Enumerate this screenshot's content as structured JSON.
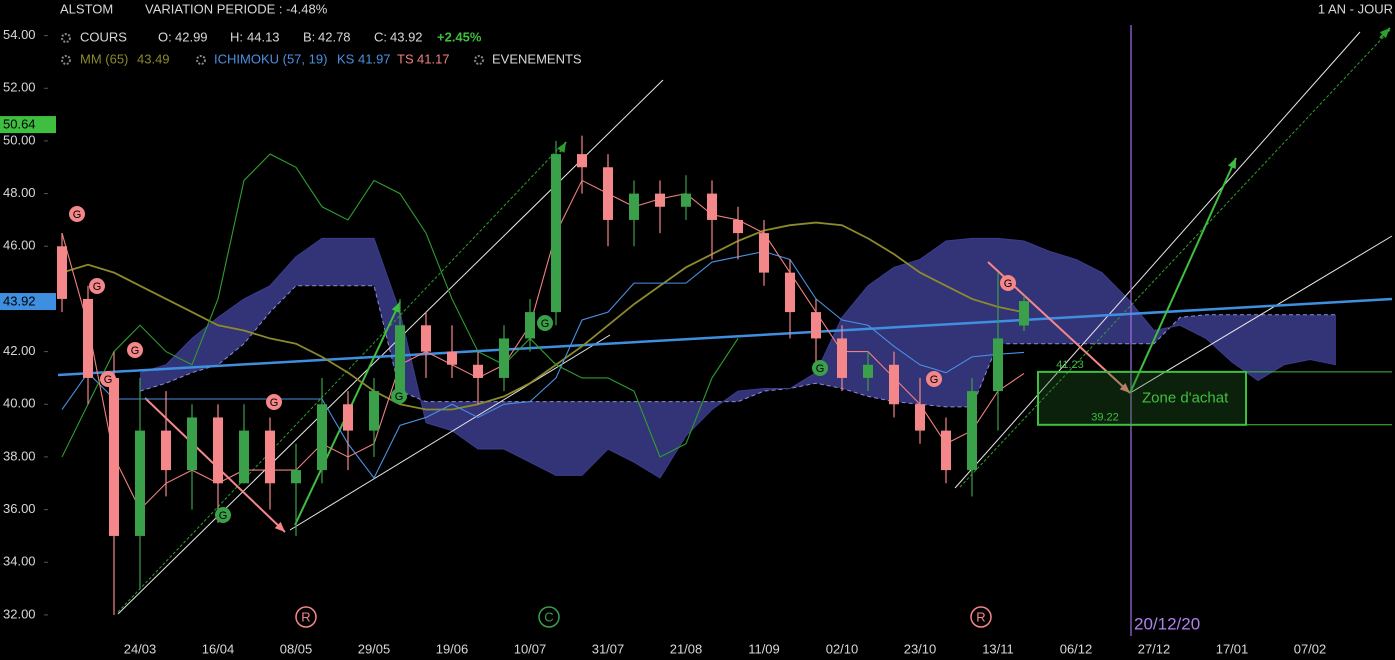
{
  "header": {
    "symbol": "ALSTOM",
    "variation": "VARIATION PERIODE : -4.48%",
    "period": "1 AN - JOUR"
  },
  "chart_data": {
    "type": "candlestick",
    "categories": [
      null,
      null,
      null,
      "24/03",
      null,
      null,
      "16/04",
      null,
      null,
      "08/05",
      null,
      null,
      "29/05",
      null,
      null,
      "19/06",
      null,
      null,
      "10/07",
      null,
      null,
      "31/07",
      null,
      null,
      "21/08",
      null,
      null,
      "11/09",
      null,
      null,
      "02/10",
      null,
      null,
      "23/10",
      null,
      null,
      "13/11",
      null,
      null,
      "06/12",
      null,
      null,
      "27/12",
      null,
      null,
      "17/01",
      null,
      null,
      "07/02",
      null,
      null
    ],
    "open": [
      46.0,
      44.0,
      41.0,
      35.0,
      39.0,
      37.5,
      39.5,
      37.0,
      39.0,
      37.0,
      37.5,
      40.0,
      39.0,
      40.5,
      43.0,
      42.0,
      41.5,
      41.0,
      42.5,
      43.5,
      49.5,
      49.0,
      47.0,
      48.0,
      47.5,
      48.0,
      47.0,
      46.5,
      45.0,
      43.5,
      42.5,
      41.0,
      41.5,
      40.0,
      39.0,
      37.5,
      40.5,
      42.99,
      null,
      null,
      null,
      null,
      null,
      null,
      null,
      null,
      null,
      null,
      null,
      null,
      null
    ],
    "high": [
      46.5,
      44.5,
      42.0,
      41.0,
      40.5,
      40.0,
      40.0,
      40.0,
      39.5,
      38.5,
      41.0,
      40.5,
      41.0,
      44.0,
      43.5,
      43.0,
      42.0,
      43.0,
      44.0,
      50.0,
      50.2,
      49.5,
      48.5,
      48.5,
      48.7,
      48.5,
      47.5,
      47.0,
      45.5,
      44.0,
      43.0,
      42.0,
      42.0,
      41.0,
      39.5,
      41.0,
      45.0,
      44.13,
      null,
      null,
      null,
      null,
      null,
      null,
      null,
      null,
      null,
      null,
      null,
      null,
      null
    ],
    "low": [
      43.5,
      40.0,
      32.0,
      33.0,
      36.5,
      36.0,
      35.5,
      37.0,
      36.0,
      35.0,
      37.0,
      37.5,
      38.0,
      40.0,
      41.0,
      41.0,
      40.0,
      40.5,
      42.0,
      43.0,
      48.0,
      46.0,
      46.0,
      46.5,
      47.0,
      45.5,
      45.5,
      44.5,
      42.5,
      41.5,
      40.5,
      40.5,
      39.5,
      38.5,
      37.0,
      36.5,
      39.0,
      42.78,
      null,
      null,
      null,
      null,
      null,
      null,
      null,
      null,
      null,
      null,
      null,
      null,
      null
    ],
    "close": [
      44.0,
      41.0,
      35.0,
      39.0,
      37.5,
      39.5,
      37.0,
      39.0,
      37.0,
      37.5,
      40.0,
      39.0,
      40.5,
      43.0,
      42.0,
      41.5,
      41.0,
      42.5,
      43.5,
      49.5,
      49.0,
      47.0,
      48.0,
      47.5,
      48.0,
      47.0,
      46.5,
      45.0,
      43.5,
      42.5,
      41.0,
      41.5,
      40.0,
      39.0,
      37.5,
      40.5,
      42.5,
      43.92,
      null,
      null,
      null,
      null,
      null,
      null,
      null,
      null,
      null,
      null,
      null,
      null,
      null
    ],
    "up_color": "#3aa04a",
    "down_color": "#f4878a",
    "ohlc_legend": {
      "name": "COURS",
      "open_label": "O:",
      "open": 42.99,
      "high_label": "H:",
      "high": 44.13,
      "low_label": "B:",
      "low": 42.78,
      "close_label": "C:",
      "close": 43.92,
      "change": "+2.45%"
    },
    "indicator": "ICHIMOKU (57, 19)",
    "events_label": "EVENEMENTS",
    "series": [
      {
        "name": "MM (65)",
        "value": 43.49,
        "color": "#8c8a2c",
        "values": [
          45.0,
          45.3,
          45.0,
          44.5,
          44.0,
          43.5,
          43.0,
          42.8,
          42.5,
          42.3,
          41.8,
          41.2,
          40.5,
          40.0,
          39.8,
          39.8,
          40.0,
          40.3,
          40.8,
          41.5,
          42.2,
          43.0,
          43.8,
          44.5,
          45.2,
          45.7,
          46.2,
          46.6,
          46.8,
          46.9,
          46.8,
          46.3,
          45.7,
          45.0,
          44.5,
          44.0,
          43.7,
          43.49,
          null,
          null,
          null,
          null,
          null,
          null,
          null,
          null,
          null,
          null,
          null,
          null,
          null
        ]
      },
      {
        "name": "KS",
        "value": 41.97,
        "color": "#4a90e2",
        "values": [
          39.8,
          41.2,
          40.2,
          40.2,
          40.2,
          40.2,
          40.2,
          40.2,
          40.2,
          40.2,
          40.2,
          38.5,
          37.2,
          39.2,
          39.5,
          40.0,
          39.5,
          40.0,
          40.1,
          41.0,
          43.2,
          43.5,
          44.6,
          44.6,
          44.6,
          45.4,
          45.6,
          45.8,
          45.5,
          44.0,
          43.2,
          43.0,
          42.2,
          41.5,
          41.2,
          41.8,
          41.9,
          41.97,
          null,
          null,
          null,
          null,
          null,
          null,
          null,
          null,
          null,
          null,
          null,
          null,
          null
        ]
      },
      {
        "name": "TS",
        "value": 41.17,
        "color": "#f08080",
        "values": [
          46.5,
          43.0,
          38.0,
          36.0,
          37.0,
          37.5,
          37.0,
          37.5,
          37.5,
          37.5,
          38.5,
          38.0,
          38.5,
          41.5,
          42.0,
          41.5,
          41.0,
          41.5,
          43.0,
          46.5,
          48.5,
          48.0,
          47.5,
          47.8,
          48.0,
          47.2,
          47.0,
          46.5,
          45.0,
          43.5,
          42.0,
          42.0,
          41.0,
          40.0,
          38.5,
          39.0,
          40.5,
          41.17,
          null,
          null,
          null,
          null,
          null,
          null,
          null,
          null,
          null,
          null,
          null,
          null,
          null
        ]
      },
      {
        "color": "#2e9e2e",
        "values": [
          38.0,
          40.0,
          42.0,
          43.0,
          42.0,
          41.5,
          44.0,
          48.5,
          49.5,
          49.0,
          47.5,
          47.0,
          48.5,
          48.0,
          46.5,
          44.0,
          42.0,
          41.5,
          42.5,
          41.5,
          41.0,
          41.0,
          40.5,
          38.0,
          38.5,
          41.0,
          42.5,
          null,
          null,
          null,
          null,
          null,
          null,
          null,
          null,
          null,
          null,
          null,
          null,
          null,
          null,
          null,
          null,
          null,
          null,
          null,
          null,
          null,
          null,
          null,
          null
        ]
      }
    ],
    "cloud": {
      "color": "#3c3c8c",
      "line_color": "#8c8cd8",
      "span_a": [
        null,
        null,
        null,
        40.5,
        40.8,
        41.2,
        41.5,
        42.3,
        43.5,
        44.5,
        44.5,
        44.5,
        44.5,
        40.5,
        40.1,
        40.1,
        40.1,
        40.1,
        40.1,
        40.1,
        40.1,
        40.1,
        40.1,
        40.1,
        40.1,
        40.1,
        40.1,
        40.5,
        40.6,
        40.8,
        40.6,
        40.3,
        40.1,
        40.0,
        39.9,
        39.9,
        42.3,
        42.3,
        42.3,
        42.3,
        42.3,
        42.3,
        42.3,
        43.3,
        43.4,
        43.4,
        43.4,
        43.4,
        43.4,
        43.4,
        null
      ],
      "span_b": [
        null,
        null,
        null,
        41.2,
        41.5,
        42.5,
        43.3,
        44.0,
        44.5,
        45.6,
        46.3,
        46.3,
        46.3,
        43.5,
        39.3,
        39.0,
        38.3,
        38.3,
        37.8,
        37.3,
        37.3,
        38.3,
        37.8,
        37.2,
        38.8,
        39.8,
        40.5,
        40.6,
        40.6,
        41.2,
        43.3,
        44.5,
        45.2,
        45.5,
        46.2,
        46.3,
        46.3,
        46.2,
        45.8,
        45.5,
        45.0,
        44.0,
        42.8,
        43.0,
        42.5,
        41.6,
        40.9,
        41.5,
        41.7,
        41.5,
        null
      ]
    },
    "ylim": [
      31.2,
      55.2
    ],
    "yticks": [
      {
        "value": 32,
        "label": "32.00"
      },
      {
        "value": 34,
        "label": "34.00"
      },
      {
        "value": 36,
        "label": "36.00"
      },
      {
        "value": 38,
        "label": "38.00"
      },
      {
        "value": 40,
        "label": "40.00"
      },
      {
        "value": 42,
        "label": "42.00"
      },
      {
        "value": 44,
        "label": "44.00"
      },
      {
        "value": 46,
        "label": "46.00"
      },
      {
        "value": 48,
        "label": "48.00"
      },
      {
        "value": 50,
        "label": "50.00"
      },
      {
        "value": 52,
        "label": "52.00"
      },
      {
        "value": 54,
        "label": "54.00"
      }
    ],
    "price_labels": [
      {
        "value": 50.64,
        "color": "#3fbf3f"
      },
      {
        "value": 43.92,
        "color": "#3f8fe0"
      }
    ],
    "zone": {
      "label": "Zone d'achat",
      "top": 41.23,
      "bottom": 39.22,
      "color": "#3fbf3f"
    },
    "marker_date": "20/12/20",
    "events": [
      {
        "label": "G",
        "color": "#f4878a"
      },
      {
        "label": "G",
        "color": "#f4878a"
      },
      {
        "label": "G",
        "color": "#f4878a"
      },
      {
        "label": "G",
        "color": "#f4878a"
      },
      {
        "label": "G",
        "color": "#3aa04a"
      },
      {
        "label": "G",
        "color": "#f4878a"
      },
      {
        "label": "G",
        "color": "#3aa04a"
      },
      {
        "label": "G",
        "color": "#3aa04a"
      },
      {
        "label": "G",
        "color": "#3aa04a"
      },
      {
        "label": "G",
        "color": "#f4878a"
      },
      {
        "label": "G",
        "color": "#f4878a"
      }
    ],
    "timeline_events": [
      {
        "label": "R",
        "color": "#f4878a"
      },
      {
        "label": "C",
        "color": "#3aa04a"
      },
      {
        "label": "R",
        "color": "#f4878a"
      }
    ]
  }
}
